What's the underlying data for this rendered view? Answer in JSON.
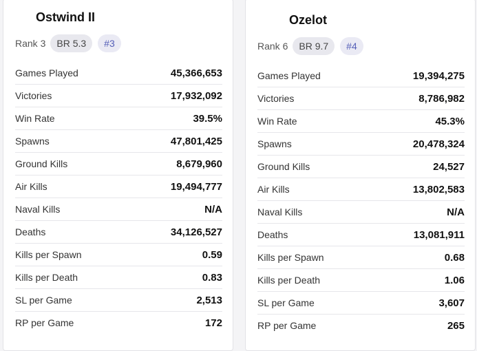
{
  "vehicles": [
    {
      "name": "Ostwind II",
      "rank": "Rank 3",
      "br": "BR 5.3",
      "position": "#3",
      "stats": [
        {
          "label": "Games Played",
          "value": "45,366,653"
        },
        {
          "label": "Victories",
          "value": "17,932,092"
        },
        {
          "label": "Win Rate",
          "value": "39.5%"
        },
        {
          "label": "Spawns",
          "value": "47,801,425"
        },
        {
          "label": "Ground Kills",
          "value": "8,679,960"
        },
        {
          "label": "Air Kills",
          "value": "19,494,777"
        },
        {
          "label": "Naval Kills",
          "value": "N/A"
        },
        {
          "label": "Deaths",
          "value": "34,126,527"
        },
        {
          "label": "Kills per Spawn",
          "value": "0.59"
        },
        {
          "label": "Kills per Death",
          "value": "0.83"
        },
        {
          "label": "SL per Game",
          "value": "2,513"
        },
        {
          "label": "RP per Game",
          "value": "172"
        }
      ]
    },
    {
      "name": "Ozelot",
      "rank": "Rank 6",
      "br": "BR 9.7",
      "position": "#4",
      "stats": [
        {
          "label": "Games Played",
          "value": "19,394,275"
        },
        {
          "label": "Victories",
          "value": "8,786,982"
        },
        {
          "label": "Win Rate",
          "value": "45.3%"
        },
        {
          "label": "Spawns",
          "value": "20,478,324"
        },
        {
          "label": "Ground Kills",
          "value": "24,527"
        },
        {
          "label": "Air Kills",
          "value": "13,802,583"
        },
        {
          "label": "Naval Kills",
          "value": "N/A"
        },
        {
          "label": "Deaths",
          "value": "13,081,911"
        },
        {
          "label": "Kills per Spawn",
          "value": "0.68"
        },
        {
          "label": "Kills per Death",
          "value": "1.06"
        },
        {
          "label": "SL per Game",
          "value": "3,607"
        },
        {
          "label": "RP per Game",
          "value": "265"
        }
      ]
    }
  ]
}
